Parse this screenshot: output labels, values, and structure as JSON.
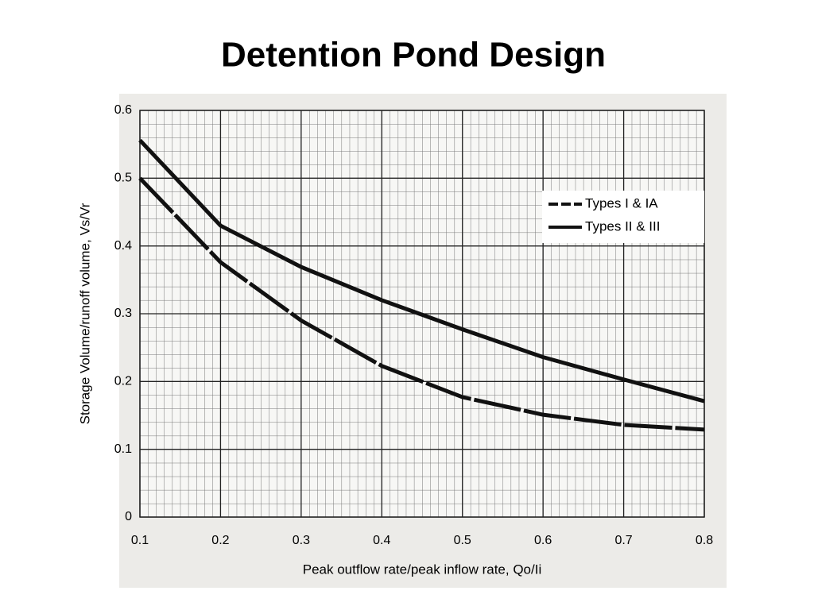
{
  "chart_data": {
    "type": "line",
    "title": "Detention Pond Design",
    "xlabel": "Peak outflow rate/peak inflow rate, Qo/Ii",
    "ylabel": "Storage Volume/runoff volume, Vs/Vr",
    "x": [
      0.1,
      0.2,
      0.3,
      0.4,
      0.5,
      0.6,
      0.7,
      0.8
    ],
    "series": [
      {
        "name": "Types I & IA",
        "color": "#111111",
        "dashed": true,
        "values": [
          0.5,
          0.376,
          0.29,
          0.223,
          0.177,
          0.151,
          0.136,
          0.129
        ]
      },
      {
        "name": "Types II & III",
        "color": "#111111",
        "dashed": false,
        "values": [
          0.556,
          0.43,
          0.369,
          0.32,
          0.277,
          0.236,
          0.203,
          0.171
        ]
      }
    ],
    "xlim": [
      0.1,
      0.8
    ],
    "xticks": [
      0.1,
      0.2,
      0.3,
      0.4,
      0.5,
      0.6,
      0.7,
      0.8
    ],
    "ylim": [
      0,
      0.6
    ],
    "yticks": [
      0,
      0.1,
      0.2,
      0.3,
      0.4,
      0.5,
      0.6
    ],
    "grid": true,
    "legend": "upper right"
  }
}
